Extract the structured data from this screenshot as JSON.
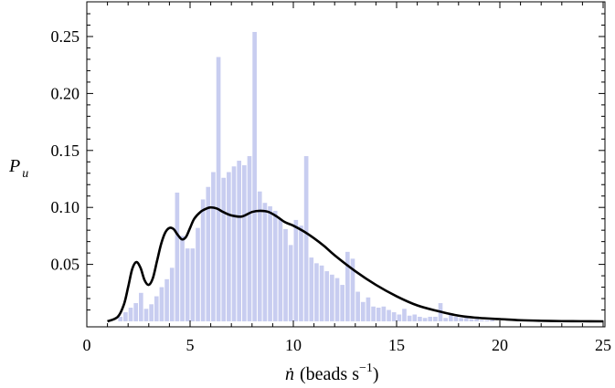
{
  "chart_data": {
    "type": "bar",
    "title": "",
    "xlabel_main": "(beads s",
    "xlabel_exp": "−1",
    "xlabel_close": ")",
    "xlabel_symbol": "ṅ",
    "ylabel_main": "P",
    "ylabel_sub": "u",
    "xlim": [
      0,
      25
    ],
    "ylim": [
      0,
      0.275
    ],
    "x_ticks": [
      0,
      5,
      10,
      15,
      20,
      25
    ],
    "y_ticks": [
      0.05,
      0.1,
      0.15,
      0.2,
      0.25
    ],
    "x_tick_labels": [
      "0",
      "5",
      "10",
      "15",
      "20",
      "25"
    ],
    "y_tick_labels": [
      "0.05",
      "0.10",
      "0.15",
      "0.20",
      "0.25"
    ],
    "grid": false,
    "bar_color": "#c8cdf0",
    "line_color": "#000000",
    "bin_width": 0.25,
    "histogram": {
      "x": [
        1.5,
        1.75,
        2.0,
        2.25,
        2.5,
        2.75,
        3.0,
        3.25,
        3.5,
        3.75,
        4.0,
        4.25,
        4.5,
        4.75,
        5.0,
        5.25,
        5.5,
        5.75,
        6.0,
        6.25,
        6.5,
        6.75,
        7.0,
        7.25,
        7.5,
        7.75,
        8.0,
        8.25,
        8.5,
        8.75,
        9.0,
        9.25,
        9.5,
        9.75,
        10.0,
        10.25,
        10.5,
        10.75,
        11.0,
        11.25,
        11.5,
        11.75,
        12.0,
        12.25,
        12.5,
        12.75,
        13.0,
        13.25,
        13.5,
        13.75,
        14.0,
        14.25,
        14.5,
        14.75,
        15.0,
        15.25,
        15.5,
        15.75,
        16.0,
        16.25,
        16.5,
        16.75,
        17.0,
        17.25,
        17.5,
        17.75,
        18.0,
        18.25,
        18.5,
        18.75,
        19.0,
        19.25,
        19.5
      ],
      "values": [
        0.004,
        0.008,
        0.012,
        0.016,
        0.025,
        0.011,
        0.015,
        0.022,
        0.03,
        0.037,
        0.047,
        0.113,
        0.075,
        0.064,
        0.064,
        0.082,
        0.107,
        0.118,
        0.131,
        0.232,
        0.126,
        0.131,
        0.136,
        0.141,
        0.137,
        0.145,
        0.254,
        0.114,
        0.104,
        0.101,
        0.097,
        0.09,
        0.081,
        0.067,
        0.089,
        0.084,
        0.145,
        0.056,
        0.051,
        0.049,
        0.044,
        0.041,
        0.038,
        0.032,
        0.061,
        0.055,
        0.026,
        0.017,
        0.021,
        0.013,
        0.012,
        0.013,
        0.01,
        0.008,
        0.006,
        0.011,
        0.005,
        0.006,
        0.004,
        0.003,
        0.004,
        0.004,
        0.016,
        0.003,
        0.006,
        0.004,
        0.003,
        0.003,
        0.002,
        0.002,
        0.001,
        0.001,
        0.001
      ]
    },
    "series": [
      {
        "x": [
          1.0,
          1.5,
          1.8,
          2.0,
          2.2,
          2.4,
          2.6,
          2.8,
          3.0,
          3.2,
          3.4,
          3.6,
          3.8,
          4.0,
          4.2,
          4.4,
          4.6,
          4.8,
          5.0,
          5.2,
          5.5,
          5.8,
          6.0,
          6.3,
          6.6,
          7.0,
          7.5,
          8.0,
          8.4,
          8.8,
          9.2,
          9.6,
          10.0,
          10.5,
          11.0,
          11.5,
          12.0,
          13.0,
          14.0,
          15.0,
          16.0,
          17.0,
          18.0,
          19.0,
          20.0,
          21.0,
          22.0,
          23.0,
          24.0,
          25.0
        ],
        "values": [
          0.0,
          0.004,
          0.015,
          0.03,
          0.046,
          0.052,
          0.047,
          0.036,
          0.032,
          0.038,
          0.053,
          0.068,
          0.078,
          0.082,
          0.081,
          0.076,
          0.072,
          0.074,
          0.082,
          0.09,
          0.096,
          0.099,
          0.1,
          0.099,
          0.096,
          0.093,
          0.092,
          0.096,
          0.097,
          0.096,
          0.092,
          0.087,
          0.084,
          0.079,
          0.073,
          0.066,
          0.058,
          0.044,
          0.032,
          0.022,
          0.014,
          0.009,
          0.005,
          0.003,
          0.002,
          0.001,
          0.0005,
          0.0002,
          0.0001,
          0.0
        ]
      }
    ]
  }
}
